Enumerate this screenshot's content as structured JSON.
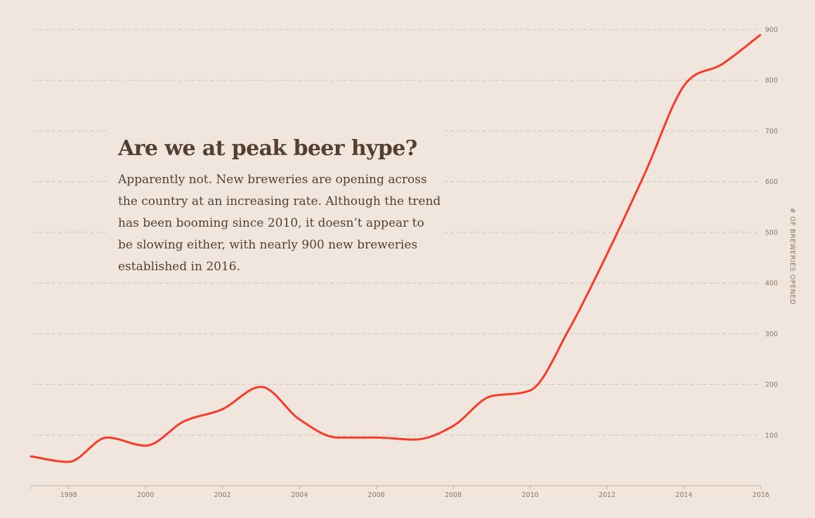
{
  "chart_data": {
    "type": "line",
    "title": "Are we at peak beer hype?",
    "subtitle": "Apparently not. New breweries are opening across the country at an increasing rate. Although the trend has been booming since 2010, it doesn’t appear to be slowing either, with nearly 900 new breweries established in 2016.",
    "xlabel": "",
    "ylabel": "# OF BREWERIES OPENED",
    "xlim": [
      1997,
      2016
    ],
    "ylim": [
      0,
      900
    ],
    "x_ticks": [
      1998,
      2000,
      2002,
      2004,
      2006,
      2008,
      2010,
      2012,
      2014,
      2016
    ],
    "y_ticks": [
      100,
      200,
      300,
      400,
      500,
      600,
      700,
      800,
      900
    ],
    "grid": "horizontal dashed",
    "line_color": "#f73b2a",
    "x": [
      1997,
      1998,
      1999,
      2000,
      2001,
      2002,
      2003,
      2004,
      2005,
      2006,
      2007,
      2008,
      2009,
      2010,
      2011,
      2012,
      2013,
      2014,
      2015,
      2016
    ],
    "values": [
      58,
      47,
      95,
      79,
      127,
      151,
      195,
      131,
      95,
      95,
      91,
      118,
      177,
      188,
      307,
      457,
      619,
      789,
      832,
      890
    ]
  }
}
